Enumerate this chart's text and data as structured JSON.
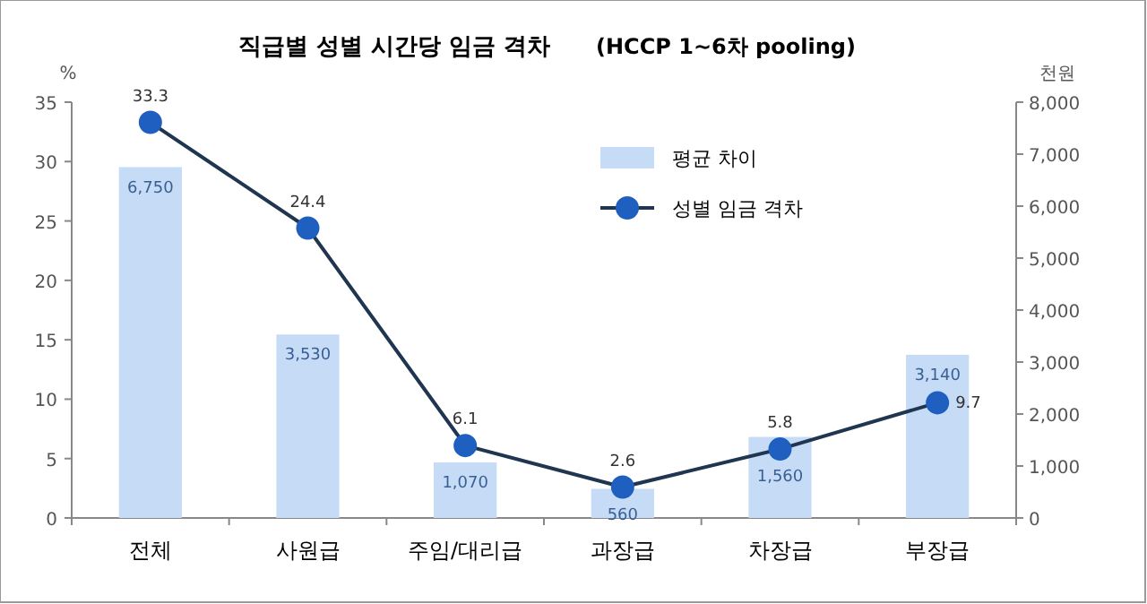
{
  "chart_data": {
    "type": "bar",
    "title": "직급별 성별 시간당 임금 격차",
    "subtitle": "(HCCP 1~6차 pooling)",
    "ylabel": "%",
    "y2label": "천원",
    "categories": [
      "전체",
      "사원급",
      "주임/대리급",
      "과장급",
      "차장급",
      "부장급"
    ],
    "series": [
      {
        "name": "평균 차이",
        "axis": "y2",
        "color": "#c6dcf6",
        "values": [
          6750,
          3530,
          1070,
          560,
          1560,
          3140
        ],
        "value_labels": [
          "6,750",
          "3,530",
          "1,070",
          "560",
          "1,560",
          "3,140"
        ]
      },
      {
        "name": "성별 임금 격차",
        "type": "line",
        "axis": "y",
        "color": "#1f3550",
        "marker": "circle",
        "values": [
          33.3,
          24.4,
          6.1,
          2.6,
          5.8,
          9.7
        ],
        "value_labels": [
          "33.3",
          "24.4",
          "6.1",
          "2.6",
          "5.8",
          "9.7"
        ]
      }
    ],
    "ylim": [
      0,
      35
    ],
    "yticks": [
      0,
      5,
      10,
      15,
      20,
      25,
      30,
      35
    ],
    "y2lim": [
      0,
      8000
    ],
    "y2ticks": [
      0,
      {
        "value": 1000,
        "label": "1,000"
      },
      {
        "value": 2000,
        "label": "2,000"
      },
      {
        "value": 3000,
        "label": "3,000"
      },
      {
        "value": 4000,
        "label": "4,000"
      },
      {
        "value": 5000,
        "label": "5,000"
      },
      {
        "value": 6000,
        "label": "6,000"
      },
      {
        "value": 7000,
        "label": "7,000"
      },
      {
        "value": 8000,
        "label": "8,000"
      }
    ],
    "legend": "top right",
    "grid": false
  }
}
